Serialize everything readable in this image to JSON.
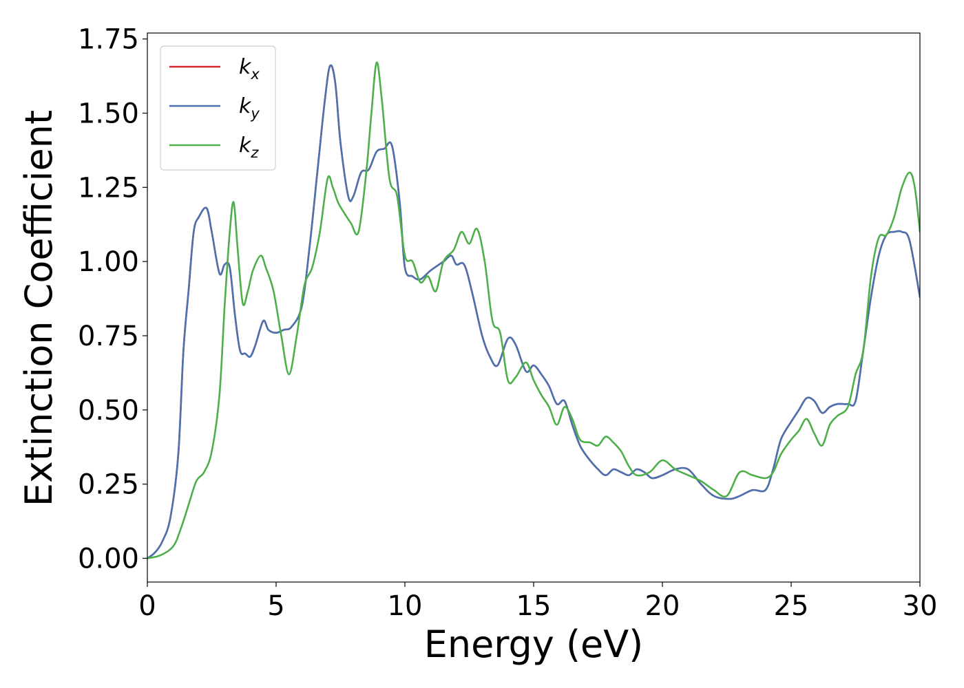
{
  "chart_data": {
    "type": "line",
    "xlabel": "Energy (eV)",
    "ylabel": "Extinction Coefficient",
    "xlim": [
      0,
      30
    ],
    "ylim": [
      -0.08,
      1.77
    ],
    "xticks": [
      0,
      5,
      10,
      15,
      20,
      25,
      30
    ],
    "xtick_labels": [
      "0",
      "5",
      "10",
      "15",
      "20",
      "25",
      "30"
    ],
    "yticks": [
      0,
      0.25,
      0.5,
      0.75,
      1.0,
      1.25,
      1.5,
      1.75
    ],
    "ytick_labels": [
      "0.00",
      "0.25",
      "0.50",
      "0.75",
      "1.00",
      "1.25",
      "1.50",
      "1.75"
    ],
    "grid": false,
    "legend_position": "top-left",
    "series": [
      {
        "name": "k_x",
        "label_base": "k",
        "label_sub": "x",
        "color": "#d62728",
        "x": [
          0,
          0.3,
          0.6,
          0.9,
          1.2,
          1.4,
          1.6,
          1.8,
          2.0,
          2.3,
          2.5,
          2.8,
          3.0,
          3.2,
          3.4,
          3.6,
          3.8,
          4.0,
          4.2,
          4.5,
          4.7,
          5.0,
          5.3,
          5.6,
          6.0,
          6.3,
          6.6,
          6.9,
          7.1,
          7.3,
          7.5,
          7.8,
          8.0,
          8.3,
          8.6,
          8.9,
          9.2,
          9.5,
          9.8,
          10.0,
          10.3,
          10.6,
          11.0,
          11.5,
          11.8,
          12.0,
          12.3,
          12.6,
          13.0,
          13.3,
          13.6,
          14.0,
          14.3,
          14.7,
          15.0,
          15.3,
          15.6,
          15.9,
          16.2,
          16.5,
          16.8,
          17.1,
          17.5,
          17.8,
          18.1,
          18.4,
          18.7,
          19.0,
          19.3,
          19.6,
          20.0,
          20.5,
          21.0,
          21.5,
          22.0,
          22.6,
          23.0,
          23.5,
          24.0,
          24.3,
          24.6,
          25.0,
          25.3,
          25.6,
          25.9,
          26.2,
          26.5,
          26.8,
          27.2,
          27.5,
          27.8,
          28.1,
          28.4,
          28.7,
          29.0,
          29.3,
          29.6,
          30.0
        ],
        "y": [
          0,
          0.02,
          0.06,
          0.14,
          0.35,
          0.7,
          0.9,
          1.1,
          1.15,
          1.18,
          1.1,
          0.96,
          0.99,
          0.98,
          0.82,
          0.7,
          0.69,
          0.68,
          0.72,
          0.8,
          0.77,
          0.76,
          0.77,
          0.78,
          0.85,
          1.05,
          1.3,
          1.55,
          1.66,
          1.6,
          1.4,
          1.22,
          1.22,
          1.3,
          1.31,
          1.37,
          1.38,
          1.39,
          1.2,
          0.98,
          0.95,
          0.94,
          0.97,
          1.0,
          1.02,
          0.99,
          0.99,
          0.9,
          0.75,
          0.68,
          0.65,
          0.74,
          0.72,
          0.63,
          0.65,
          0.62,
          0.58,
          0.52,
          0.53,
          0.45,
          0.38,
          0.34,
          0.3,
          0.28,
          0.3,
          0.29,
          0.28,
          0.3,
          0.29,
          0.27,
          0.28,
          0.3,
          0.3,
          0.25,
          0.21,
          0.2,
          0.21,
          0.23,
          0.23,
          0.3,
          0.4,
          0.46,
          0.5,
          0.54,
          0.53,
          0.49,
          0.51,
          0.52,
          0.52,
          0.53,
          0.7,
          0.88,
          1.02,
          1.09,
          1.1,
          1.1,
          1.07,
          0.88
        ]
      },
      {
        "name": "k_y",
        "label_base": "k",
        "label_sub": "y",
        "color": "#4a72b0",
        "x": [
          0,
          0.3,
          0.6,
          0.9,
          1.2,
          1.4,
          1.6,
          1.8,
          2.0,
          2.3,
          2.5,
          2.8,
          3.0,
          3.2,
          3.4,
          3.6,
          3.8,
          4.0,
          4.2,
          4.5,
          4.7,
          5.0,
          5.3,
          5.6,
          6.0,
          6.3,
          6.6,
          6.9,
          7.1,
          7.3,
          7.5,
          7.8,
          8.0,
          8.3,
          8.6,
          8.9,
          9.2,
          9.5,
          9.8,
          10.0,
          10.3,
          10.6,
          11.0,
          11.5,
          11.8,
          12.0,
          12.3,
          12.6,
          13.0,
          13.3,
          13.6,
          14.0,
          14.3,
          14.7,
          15.0,
          15.3,
          15.6,
          15.9,
          16.2,
          16.5,
          16.8,
          17.1,
          17.5,
          17.8,
          18.1,
          18.4,
          18.7,
          19.0,
          19.3,
          19.6,
          20.0,
          20.5,
          21.0,
          21.5,
          22.0,
          22.6,
          23.0,
          23.5,
          24.0,
          24.3,
          24.6,
          25.0,
          25.3,
          25.6,
          25.9,
          26.2,
          26.5,
          26.8,
          27.2,
          27.5,
          27.8,
          28.1,
          28.4,
          28.7,
          29.0,
          29.3,
          29.6,
          30.0
        ],
        "y": [
          0,
          0.02,
          0.06,
          0.14,
          0.35,
          0.7,
          0.9,
          1.1,
          1.15,
          1.18,
          1.1,
          0.96,
          0.99,
          0.98,
          0.82,
          0.7,
          0.69,
          0.68,
          0.72,
          0.8,
          0.77,
          0.76,
          0.77,
          0.78,
          0.85,
          1.05,
          1.3,
          1.55,
          1.66,
          1.6,
          1.4,
          1.22,
          1.22,
          1.3,
          1.31,
          1.37,
          1.38,
          1.39,
          1.2,
          0.98,
          0.95,
          0.94,
          0.97,
          1.0,
          1.02,
          0.99,
          0.99,
          0.9,
          0.75,
          0.68,
          0.65,
          0.74,
          0.72,
          0.63,
          0.65,
          0.62,
          0.58,
          0.52,
          0.53,
          0.45,
          0.38,
          0.34,
          0.3,
          0.28,
          0.3,
          0.29,
          0.28,
          0.3,
          0.29,
          0.27,
          0.28,
          0.3,
          0.3,
          0.25,
          0.21,
          0.2,
          0.21,
          0.23,
          0.23,
          0.3,
          0.4,
          0.46,
          0.5,
          0.54,
          0.53,
          0.49,
          0.51,
          0.52,
          0.52,
          0.53,
          0.7,
          0.88,
          1.02,
          1.09,
          1.1,
          1.1,
          1.07,
          0.88
        ]
      },
      {
        "name": "k_z",
        "label_base": "k",
        "label_sub": "z",
        "color": "#4daf4a",
        "x": [
          0,
          0.5,
          1.0,
          1.3,
          1.6,
          1.9,
          2.2,
          2.5,
          2.8,
          3.0,
          3.2,
          3.35,
          3.5,
          3.7,
          3.9,
          4.1,
          4.4,
          4.6,
          4.9,
          5.2,
          5.5,
          5.8,
          6.1,
          6.4,
          6.7,
          7.0,
          7.2,
          7.4,
          7.6,
          7.9,
          8.2,
          8.5,
          8.7,
          8.9,
          9.1,
          9.4,
          9.7,
          10.0,
          10.3,
          10.6,
          10.9,
          11.2,
          11.5,
          11.9,
          12.2,
          12.5,
          12.8,
          13.1,
          13.4,
          13.7,
          14.0,
          14.3,
          14.7,
          15.0,
          15.3,
          15.6,
          15.9,
          16.2,
          16.5,
          16.8,
          17.2,
          17.5,
          17.8,
          18.1,
          18.4,
          18.7,
          19.0,
          19.5,
          20.0,
          20.5,
          21.0,
          21.5,
          22.0,
          22.5,
          23.0,
          23.5,
          24.0,
          24.3,
          24.6,
          25.0,
          25.3,
          25.6,
          25.9,
          26.2,
          26.5,
          26.8,
          27.2,
          27.5,
          27.8,
          28.1,
          28.4,
          28.7,
          29.0,
          29.3,
          29.6,
          29.8,
          30.0
        ],
        "y": [
          0,
          0.01,
          0.04,
          0.1,
          0.18,
          0.26,
          0.29,
          0.36,
          0.55,
          0.85,
          1.1,
          1.2,
          1.05,
          0.86,
          0.9,
          0.97,
          1.02,
          0.98,
          0.9,
          0.75,
          0.62,
          0.75,
          0.92,
          0.98,
          1.1,
          1.28,
          1.25,
          1.2,
          1.17,
          1.13,
          1.1,
          1.3,
          1.5,
          1.67,
          1.55,
          1.28,
          1.22,
          1.02,
          1.0,
          0.93,
          0.95,
          0.9,
          1.0,
          1.04,
          1.1,
          1.06,
          1.11,
          1.0,
          0.8,
          0.76,
          0.6,
          0.61,
          0.66,
          0.6,
          0.55,
          0.51,
          0.45,
          0.51,
          0.47,
          0.4,
          0.39,
          0.38,
          0.41,
          0.39,
          0.36,
          0.31,
          0.28,
          0.29,
          0.33,
          0.3,
          0.28,
          0.26,
          0.23,
          0.21,
          0.29,
          0.28,
          0.27,
          0.29,
          0.35,
          0.4,
          0.43,
          0.47,
          0.42,
          0.38,
          0.45,
          0.48,
          0.51,
          0.62,
          0.7,
          0.95,
          1.08,
          1.09,
          1.15,
          1.25,
          1.3,
          1.25,
          1.1
        ]
      }
    ]
  }
}
